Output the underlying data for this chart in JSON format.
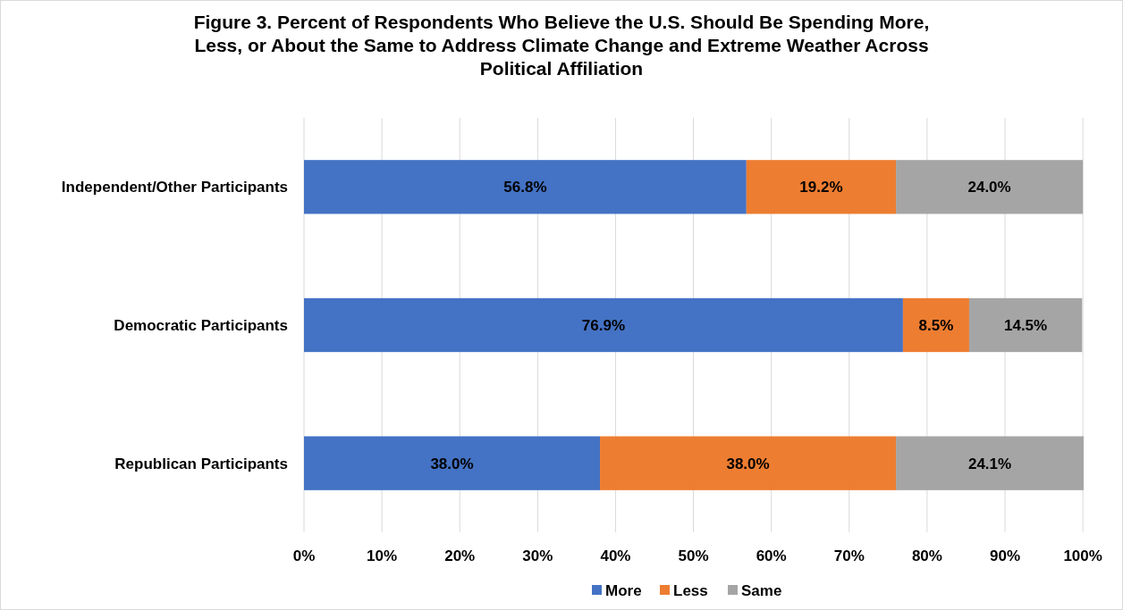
{
  "chart_data": {
    "type": "bar",
    "orientation": "horizontal",
    "stacked": true,
    "title": "Figure 3. Percent of Respondents Who Believe the U.S. Should Be Spending More, Less, or About the Same to Address Climate Change and Extreme Weather Across Political Affiliation",
    "categories": [
      "Independent/Other Participants",
      "Democratic Participants",
      "Republican Participants"
    ],
    "series": [
      {
        "name": "More",
        "color": "#4472c4",
        "values": [
          56.8,
          76.9,
          38.0
        ],
        "value_labels": [
          "56.8%",
          "76.9%",
          "38.0%"
        ]
      },
      {
        "name": "Less",
        "color": "#ed7d31",
        "values": [
          19.2,
          8.5,
          38.0
        ],
        "value_labels": [
          "19.2%",
          "8.5%",
          "38.0%"
        ]
      },
      {
        "name": "Same",
        "color": "#a5a5a5",
        "values": [
          24.0,
          14.5,
          24.1
        ],
        "value_labels": [
          "24.0%",
          "14.5%",
          "24.1%"
        ]
      }
    ],
    "xlim": [
      0,
      100.1
    ],
    "xticks": [
      {
        "value": 0,
        "label": "0%"
      },
      {
        "value": 10,
        "label": "10%"
      },
      {
        "value": 20,
        "label": "20%"
      },
      {
        "value": 30,
        "label": "30%"
      },
      {
        "value": 40,
        "label": "40%"
      },
      {
        "value": 50,
        "label": "50%"
      },
      {
        "value": 60,
        "label": "60%"
      },
      {
        "value": 70,
        "label": "70%"
      },
      {
        "value": 80,
        "label": "80%"
      },
      {
        "value": 90,
        "label": "90%"
      },
      {
        "value": 100,
        "label": "100%"
      }
    ],
    "grid": "x",
    "legend": "bottom"
  }
}
